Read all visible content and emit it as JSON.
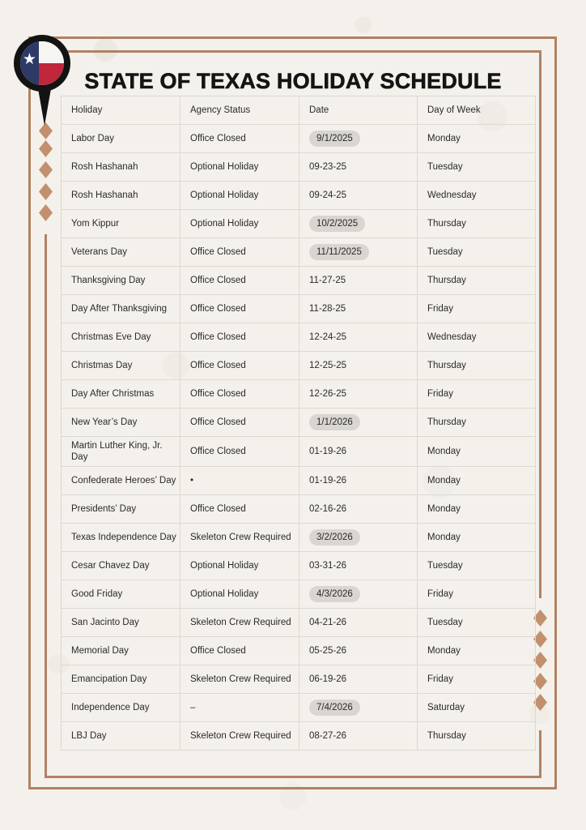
{
  "header": {
    "title": "STATE OF TEXAS HOLIDAY SCHEDULE"
  },
  "logo": {
    "description": "Texas flag inside black circular location pin",
    "flag_star_glyph": "★"
  },
  "colors": {
    "accent_border": "#b28163",
    "diamond": "#c2906f",
    "date_pill_bg": "#d9d5d0",
    "paper_bg": "#f4f1ec",
    "flag_blue": "#2e3a66",
    "flag_red": "#c0273d",
    "flag_white": "#f7f5f2",
    "text": "#2b2a28"
  },
  "table": {
    "columns": [
      "Holiday",
      "Agency Status",
      "Date",
      "Day of Week"
    ],
    "rows": [
      {
        "holiday": "Labor Day",
        "status": "Office Closed",
        "date": "9/1/2025",
        "date_highlighted": true,
        "day": "Monday"
      },
      {
        "holiday": "Rosh Hashanah",
        "status": "Optional Holiday",
        "date": "09-23-25",
        "date_highlighted": false,
        "day": "Tuesday"
      },
      {
        "holiday": "Rosh Hashanah",
        "status": "Optional Holiday",
        "date": "09-24-25",
        "date_highlighted": false,
        "day": "Wednesday"
      },
      {
        "holiday": "Yom Kippur",
        "status": "Optional Holiday",
        "date": "10/2/2025",
        "date_highlighted": true,
        "day": "Thursday"
      },
      {
        "holiday": "Veterans Day",
        "status": "Office Closed",
        "date": "11/11/2025",
        "date_highlighted": true,
        "day": "Tuesday"
      },
      {
        "holiday": "Thanksgiving Day",
        "status": "Office Closed",
        "date": "11-27-25",
        "date_highlighted": false,
        "day": "Thursday"
      },
      {
        "holiday": "Day After Thanksgiving",
        "status": "Office Closed",
        "date": "11-28-25",
        "date_highlighted": false,
        "day": "Friday"
      },
      {
        "holiday": "Christmas Eve Day",
        "status": "Office Closed",
        "date": "12-24-25",
        "date_highlighted": false,
        "day": "Wednesday"
      },
      {
        "holiday": "Christmas Day",
        "status": "Office Closed",
        "date": "12-25-25",
        "date_highlighted": false,
        "day": "Thursday"
      },
      {
        "holiday": "Day After Christmas",
        "status": "Office Closed",
        "date": "12-26-25",
        "date_highlighted": false,
        "day": "Friday"
      },
      {
        "holiday": "New Year’s Day",
        "status": "Office Closed",
        "date": "1/1/2026",
        "date_highlighted": true,
        "day": "Thursday"
      },
      {
        "holiday": "Martin Luther King, Jr. Day",
        "status": "Office Closed",
        "date": "01-19-26",
        "date_highlighted": false,
        "day": "Monday"
      },
      {
        "holiday": "Confederate Heroes’ Day",
        "status": "•",
        "date": "01-19-26",
        "date_highlighted": false,
        "day": "Monday"
      },
      {
        "holiday": "Presidents’ Day",
        "status": "Office Closed",
        "date": "02-16-26",
        "date_highlighted": false,
        "day": "Monday"
      },
      {
        "holiday": "Texas Independence Day",
        "status": "Skeleton Crew Required",
        "date": "3/2/2026",
        "date_highlighted": true,
        "day": "Monday"
      },
      {
        "holiday": "Cesar Chavez Day",
        "status": "Optional Holiday",
        "date": "03-31-26",
        "date_highlighted": false,
        "day": "Tuesday"
      },
      {
        "holiday": "Good Friday",
        "status": "Optional Holiday",
        "date": "4/3/2026",
        "date_highlighted": true,
        "day": "Friday"
      },
      {
        "holiday": "San Jacinto Day",
        "status": "Skeleton Crew Required",
        "date": "04-21-26",
        "date_highlighted": false,
        "day": "Tuesday"
      },
      {
        "holiday": "Memorial Day",
        "status": "Office Closed",
        "date": "05-25-26",
        "date_highlighted": false,
        "day": "Monday"
      },
      {
        "holiday": "Emancipation Day",
        "status": "Skeleton Crew Required",
        "date": "06-19-26",
        "date_highlighted": false,
        "day": "Friday"
      },
      {
        "holiday": "Independence Day",
        "status": "–",
        "date": "7/4/2026",
        "date_highlighted": true,
        "day": "Saturday"
      },
      {
        "holiday": "LBJ Day",
        "status": "Skeleton Crew Required",
        "date": "08-27-26",
        "date_highlighted": false,
        "day": "Thursday"
      }
    ]
  }
}
